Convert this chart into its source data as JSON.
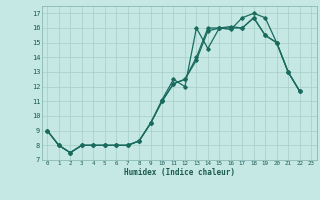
{
  "title": "",
  "xlabel": "Humidex (Indice chaleur)",
  "bg_color": "#c5e8e5",
  "line_color": "#1a6b5e",
  "grid_color": "#a8ccc8",
  "xlim": [
    -0.5,
    23.5
  ],
  "ylim": [
    7,
    17.5
  ],
  "xticks": [
    0,
    1,
    2,
    3,
    4,
    5,
    6,
    7,
    8,
    9,
    10,
    11,
    12,
    13,
    14,
    15,
    16,
    17,
    18,
    19,
    20,
    21,
    22,
    23
  ],
  "yticks": [
    7,
    8,
    9,
    10,
    11,
    12,
    13,
    14,
    15,
    16,
    17
  ],
  "line1_y": [
    9,
    8,
    7.5,
    8,
    8,
    8,
    8,
    8,
    8.3,
    9.5,
    11.0,
    12.2,
    12.5,
    14.0,
    16.0,
    16.0,
    16.0,
    16.0,
    16.7,
    15.5,
    15.0,
    13.0,
    11.7,
    null
  ],
  "line2_y": [
    9,
    8,
    7.5,
    8,
    8,
    8,
    8,
    8,
    8.3,
    9.5,
    11.1,
    12.5,
    12.0,
    16.0,
    14.6,
    16.0,
    16.1,
    16.0,
    16.7,
    15.5,
    15.0,
    13.0,
    11.7,
    null
  ],
  "line3_y": [
    9,
    8,
    7.5,
    8,
    8,
    8,
    8,
    8,
    8.3,
    9.5,
    11.0,
    12.2,
    12.5,
    13.8,
    15.8,
    16.0,
    15.9,
    16.7,
    17.0,
    16.7,
    15.0,
    13.0,
    11.7,
    null
  ]
}
